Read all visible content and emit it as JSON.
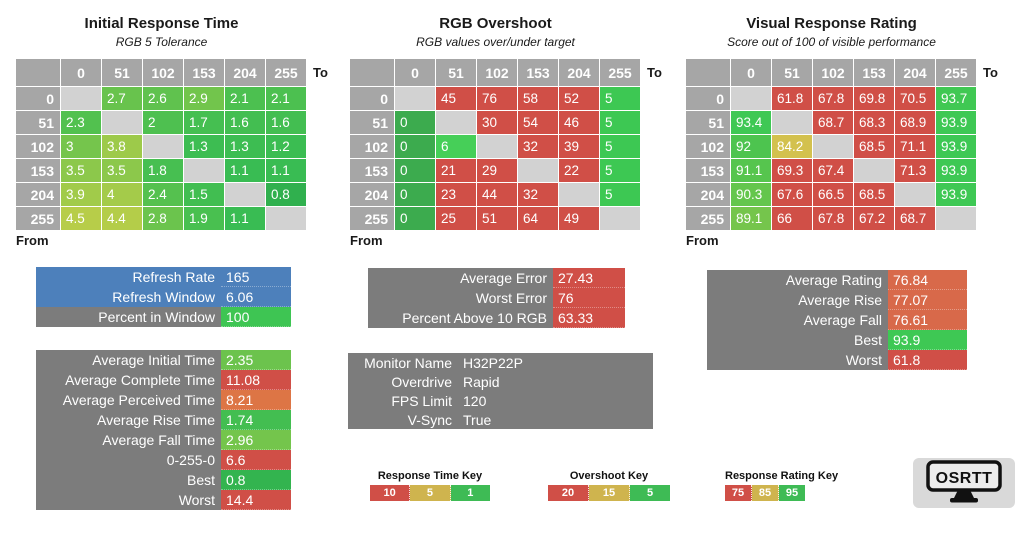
{
  "colors": {
    "header_gray": "#a6a6a6",
    "diagonal_gray": "#d2d2d2",
    "panel_gray": "#7c7c7c",
    "refresh_blue": "#4d80bb",
    "red": "#d04f47",
    "green": "#3ec854",
    "key_tan": "#cfb44e",
    "key_green": "#3ebb55"
  },
  "chart_data": [
    {
      "type": "heatmap",
      "title": "Initial Response Time",
      "subtitle": "RGB 5 Tolerance",
      "x_axis_label": "To",
      "y_axis_label": "From",
      "x": [
        0,
        51,
        102,
        153,
        204,
        255
      ],
      "y": [
        0,
        51,
        102,
        153,
        204,
        255
      ],
      "values": [
        [
          null,
          2.7,
          2.6,
          2.9,
          2.1,
          2.1
        ],
        [
          2.3,
          null,
          2,
          1.7,
          1.6,
          1.6
        ],
        [
          3,
          3.8,
          null,
          1.3,
          1.3,
          1.2
        ],
        [
          3.5,
          3.5,
          1.8,
          null,
          1.1,
          1.1
        ],
        [
          3.9,
          4,
          2.4,
          1.5,
          null,
          0.8
        ],
        [
          4.5,
          4.4,
          2.8,
          1.9,
          1.1,
          null
        ]
      ],
      "cell_colors": [
        [
          "",
          "#68c34d",
          "#60c24e",
          "#72c54c",
          "#4cc050",
          "#4cc050"
        ],
        [
          "#52c14f",
          "",
          "#4ec050",
          "#45bf51",
          "#43be51",
          "#43be51"
        ],
        [
          "#75c54c",
          "#9dca4a",
          "",
          "#3dbd52",
          "#3dbd52",
          "#3bbd52"
        ],
        [
          "#8cc84b",
          "#8cc84b",
          "#47bf51",
          "",
          "#39bc53",
          "#39bc53"
        ],
        [
          "#a1cb4a",
          "#a4cb4a",
          "#55c14f",
          "#41be51",
          "",
          "#30b04e"
        ],
        [
          "#b7cd49",
          "#b4cd49",
          "#6bc44d",
          "#49c050",
          "#39bc53",
          ""
        ]
      ]
    },
    {
      "type": "heatmap",
      "title": "RGB Overshoot",
      "subtitle": "RGB values over/under target",
      "x_axis_label": "To",
      "y_axis_label": "From",
      "x": [
        0,
        51,
        102,
        153,
        204,
        255
      ],
      "y": [
        0,
        51,
        102,
        153,
        204,
        255
      ],
      "values": [
        [
          null,
          45,
          76,
          58,
          52,
          5
        ],
        [
          0,
          null,
          30,
          54,
          46,
          5
        ],
        [
          0,
          6,
          null,
          32,
          39,
          5
        ],
        [
          0,
          21,
          29,
          null,
          22,
          5
        ],
        [
          0,
          23,
          44,
          32,
          null,
          5
        ],
        [
          0,
          25,
          51,
          64,
          49,
          null
        ]
      ],
      "cell_colors": [
        [
          "",
          "#d04f47",
          "#d04f47",
          "#d04f47",
          "#d04f47",
          "#3dc853"
        ],
        [
          "#3cab4e",
          "",
          "#d04f47",
          "#d04f47",
          "#d04f47",
          "#3dc853"
        ],
        [
          "#3cab4e",
          "#46cf58",
          "",
          "#d04f47",
          "#d04f47",
          "#3dc853"
        ],
        [
          "#3cab4e",
          "#d04f47",
          "#d04f47",
          "",
          "#d04f47",
          "#3dc853"
        ],
        [
          "#3cab4e",
          "#d04f47",
          "#d04f47",
          "#d04f47",
          "",
          "#3dc853"
        ],
        [
          "#3cab4e",
          "#d04f47",
          "#d04f47",
          "#d04f47",
          "#d04f47",
          ""
        ]
      ]
    },
    {
      "type": "heatmap",
      "title": "Visual Response Rating",
      "subtitle": "Score out of 100 of visible performance",
      "x_axis_label": "To",
      "y_axis_label": "From",
      "x": [
        0,
        51,
        102,
        153,
        204,
        255
      ],
      "y": [
        0,
        51,
        102,
        153,
        204,
        255
      ],
      "values": [
        [
          null,
          61.8,
          67.8,
          69.8,
          70.5,
          93.7
        ],
        [
          93.4,
          null,
          68.7,
          68.3,
          68.9,
          93.9
        ],
        [
          92,
          84.2,
          null,
          68.5,
          71.1,
          93.9
        ],
        [
          91.1,
          69.3,
          67.4,
          null,
          71.3,
          93.9
        ],
        [
          90.3,
          67.6,
          66.5,
          68.5,
          null,
          93.9
        ],
        [
          89.1,
          66,
          67.8,
          67.2,
          68.7,
          null
        ]
      ],
      "cell_colors": [
        [
          "",
          "#d04f47",
          "#d04f47",
          "#d04f47",
          "#d04f47",
          "#40c853"
        ],
        [
          "#3fc854",
          "",
          "#d04f47",
          "#d04f47",
          "#d04f47",
          "#3ec854"
        ],
        [
          "#4dc44f",
          "#d3c14e",
          "",
          "#d04f47",
          "#d04f47",
          "#3ec854"
        ],
        [
          "#56c54e",
          "#d04f47",
          "#d04f47",
          "",
          "#d04f47",
          "#3ec854"
        ],
        [
          "#64c64d",
          "#d04f47",
          "#d04f47",
          "#d04f47",
          "",
          "#3ec854"
        ],
        [
          "#75c54c",
          "#d04f47",
          "#d04f47",
          "#d04f47",
          "#d04f47",
          ""
        ]
      ]
    }
  ],
  "panels": {
    "refresh": {
      "rows": [
        {
          "label": "Refresh Rate",
          "value": "165",
          "label_bg": "#4d80bb",
          "value_bg": "#4d80bb"
        },
        {
          "label": "Refresh Window",
          "value": "6.06",
          "label_bg": "#4d80bb",
          "value_bg": "#4d80bb"
        },
        {
          "label": "Percent in Window",
          "value": "100",
          "label_bg": "#7c7c7c",
          "value_bg": "#3ec553"
        }
      ]
    },
    "times": {
      "rows": [
        {
          "label": "Average Initial Time",
          "value": "2.35",
          "label_bg": "#7c7c7c",
          "value_bg": "#6cc34d"
        },
        {
          "label": "Average Complete Time",
          "value": "11.08",
          "label_bg": "#7c7c7c",
          "value_bg": "#d04f47"
        },
        {
          "label": "Average Perceived Time",
          "value": "8.21",
          "label_bg": "#7c7c7c",
          "value_bg": "#dd7545"
        },
        {
          "label": "Average Rise Time",
          "value": "1.74",
          "label_bg": "#7c7c7c",
          "value_bg": "#43be51"
        },
        {
          "label": "Average Fall Time",
          "value": "2.96",
          "label_bg": "#7c7c7c",
          "value_bg": "#74c54c"
        },
        {
          "label": "0-255-0",
          "value": "6.6",
          "label_bg": "#7c7c7c",
          "value_bg": "#d04f47"
        },
        {
          "label": "Best",
          "value": "0.8",
          "label_bg": "#7c7c7c",
          "value_bg": "#33b44f"
        },
        {
          "label": "Worst",
          "value": "14.4",
          "label_bg": "#7c7c7c",
          "value_bg": "#d04f47"
        }
      ]
    },
    "errors": {
      "rows": [
        {
          "label": "Average Error",
          "value": "27.43",
          "label_bg": "#7c7c7c",
          "value_bg": "#d04f47"
        },
        {
          "label": "Worst Error",
          "value": "76",
          "label_bg": "#7c7c7c",
          "value_bg": "#d04f47"
        },
        {
          "label": "Percent Above 10 RGB",
          "value": "63.33",
          "label_bg": "#7c7c7c",
          "value_bg": "#d04f47"
        }
      ]
    },
    "monitor": {
      "rows": [
        {
          "label": "Monitor Name",
          "value": "H32P22P",
          "label_bg": "#7c7c7c",
          "value_bg": "#7c7c7c"
        },
        {
          "label": "Overdrive",
          "value": "Rapid",
          "label_bg": "#7c7c7c",
          "value_bg": "#7c7c7c"
        },
        {
          "label": "FPS Limit",
          "value": "120",
          "label_bg": "#7c7c7c",
          "value_bg": "#7c7c7c"
        },
        {
          "label": "V-Sync",
          "value": "True",
          "label_bg": "#7c7c7c",
          "value_bg": "#7c7c7c"
        }
      ]
    },
    "ratings": {
      "rows": [
        {
          "label": "Average Rating",
          "value": "76.84",
          "label_bg": "#7c7c7c",
          "value_bg": "#d8694a"
        },
        {
          "label": "Average Rise",
          "value": "77.07",
          "label_bg": "#7c7c7c",
          "value_bg": "#d8694a"
        },
        {
          "label": "Average Fall",
          "value": "76.61",
          "label_bg": "#7c7c7c",
          "value_bg": "#d8694a"
        },
        {
          "label": "Best",
          "value": "93.9",
          "label_bg": "#7c7c7c",
          "value_bg": "#3ec854"
        },
        {
          "label": "Worst",
          "value": "61.8",
          "label_bg": "#7c7c7c",
          "value_bg": "#d04f47"
        }
      ]
    }
  },
  "keys": [
    {
      "id": "response_time",
      "title": "Response Time Key",
      "cells": [
        {
          "value": "10",
          "color": "#d04f47"
        },
        {
          "value": "5",
          "color": "#cfb44e"
        },
        {
          "value": "1",
          "color": "#3ebb55"
        }
      ]
    },
    {
      "id": "overshoot",
      "title": "Overshoot Key",
      "cells": [
        {
          "value": "20",
          "color": "#d04f47"
        },
        {
          "value": "15",
          "color": "#cfb44e"
        },
        {
          "value": "5",
          "color": "#3ebb55"
        }
      ]
    },
    {
      "id": "rating",
      "title": "Response Rating Key",
      "cells": [
        {
          "value": "75",
          "color": "#d04f47"
        },
        {
          "value": "85",
          "color": "#cfb44e"
        },
        {
          "value": "95",
          "color": "#3ebb55"
        }
      ]
    }
  ],
  "logo": {
    "text": "OSRTT"
  }
}
